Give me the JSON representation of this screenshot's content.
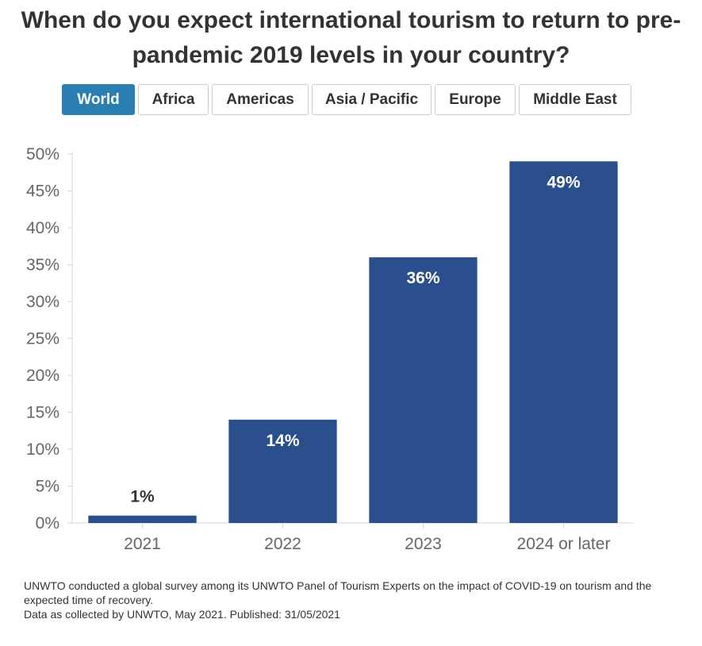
{
  "title": "When do you expect international tourism to return to pre-pandemic 2019 levels in your country?",
  "tabs": [
    {
      "label": "World",
      "active": true
    },
    {
      "label": "Africa",
      "active": false
    },
    {
      "label": "Americas",
      "active": false
    },
    {
      "label": "Asia / Pacific",
      "active": false
    },
    {
      "label": "Europe",
      "active": false
    },
    {
      "label": "Middle East",
      "active": false
    }
  ],
  "colors": {
    "bar": "#2b4e8c",
    "active_tab": "#2a7fb0"
  },
  "chart_data": {
    "type": "bar",
    "categories": [
      "2021",
      "2022",
      "2023",
      "2024 or later"
    ],
    "values": [
      1,
      14,
      36,
      49
    ],
    "value_labels": [
      "1%",
      "14%",
      "36%",
      "49%"
    ],
    "ylim": [
      0,
      50
    ],
    "yticks": [
      "0%",
      "5%",
      "10%",
      "15%",
      "20%",
      "25%",
      "30%",
      "35%",
      "40%",
      "45%",
      "50%"
    ],
    "xlabel": "",
    "ylabel": "",
    "grid": false,
    "legend": "none"
  },
  "footnote": {
    "line1": "UNWTO conducted a global survey among its UNWTO Panel of Tourism Experts on the impact of COVID-19 on tourism and the expected time of recovery.",
    "line2": "Data as collected by UNWTO, May 2021. Published: 31/05/2021"
  }
}
